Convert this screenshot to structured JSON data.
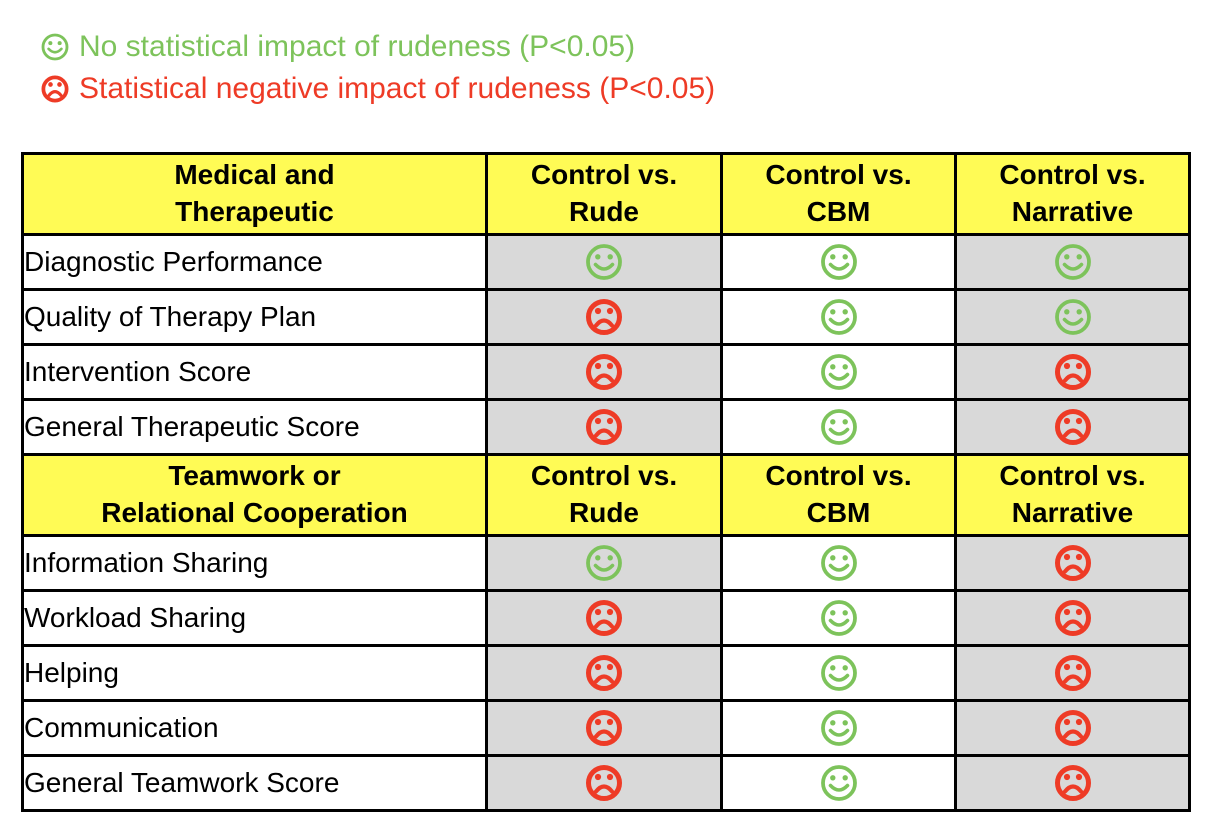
{
  "legend": {
    "positive": {
      "icon": "smiley-icon",
      "text": "No statistical impact of rudeness (P<0.05)"
    },
    "negative": {
      "icon": "frowny-icon",
      "text": "Statistical negative impact of rudeness (P<0.05)"
    }
  },
  "table": {
    "column_headers": [
      [
        "Control vs.",
        "Rude"
      ],
      [
        "Control vs.",
        "CBM"
      ],
      [
        "Control vs.",
        "Narrative"
      ]
    ],
    "column_shading": [
      "gray",
      "white",
      "gray"
    ],
    "sections": [
      {
        "title_lines": [
          "Medical and",
          "Therapeutic"
        ],
        "rows": [
          {
            "label": "Diagnostic Performance",
            "results": [
              "positive",
              "positive",
              "positive"
            ]
          },
          {
            "label": "Quality of Therapy Plan",
            "results": [
              "negative",
              "positive",
              "positive"
            ]
          },
          {
            "label": "Intervention Score",
            "results": [
              "negative",
              "positive",
              "negative"
            ]
          },
          {
            "label": "General Therapeutic Score",
            "results": [
              "negative",
              "positive",
              "negative"
            ]
          }
        ]
      },
      {
        "title_lines": [
          "Teamwork or",
          "Relational Cooperation"
        ],
        "rows": [
          {
            "label": "Information Sharing",
            "results": [
              "positive",
              "positive",
              "negative"
            ]
          },
          {
            "label": "Workload Sharing",
            "results": [
              "negative",
              "positive",
              "negative"
            ]
          },
          {
            "label": "Helping",
            "results": [
              "negative",
              "positive",
              "negative"
            ]
          },
          {
            "label": "Communication",
            "results": [
              "negative",
              "positive",
              "negative"
            ]
          },
          {
            "label": "General Teamwork Score",
            "results": [
              "negative",
              "positive",
              "negative"
            ]
          }
        ]
      }
    ]
  },
  "colors": {
    "header_bg": "#FFFB55",
    "cell_gray": "#D9D9D9",
    "positive_green": "#7DC35B",
    "negative_red": "#EE3B26",
    "border": "#000000"
  }
}
